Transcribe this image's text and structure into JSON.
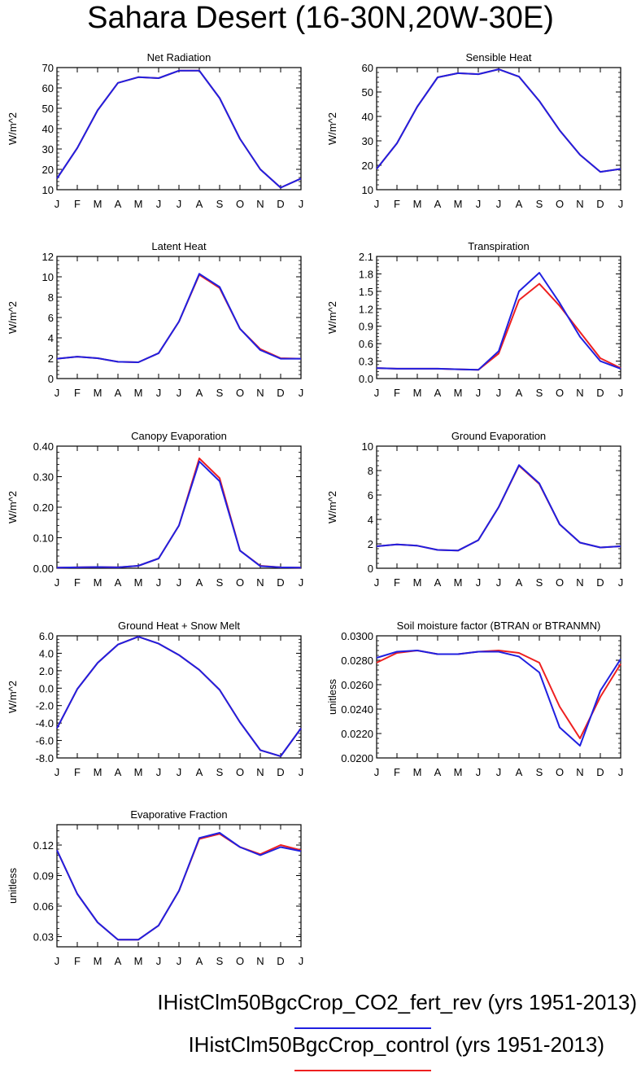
{
  "title": "Sahara Desert (16-30N,20W-30E)",
  "months": [
    "J",
    "F",
    "M",
    "A",
    "M",
    "J",
    "J",
    "A",
    "S",
    "O",
    "N",
    "D",
    "J"
  ],
  "colors": {
    "co2_fert_rev": "#2020e0",
    "control": "#ee2020"
  },
  "legend": [
    {
      "label": "IHistClm50BgcCrop_CO2_fert_rev (yrs 1951-2013)",
      "color": "#2020e0"
    },
    {
      "label": "IHistClm50BgcCrop_control (yrs 1951-2013)",
      "color": "#ee2020"
    }
  ],
  "chart_data": [
    {
      "type": "line",
      "title": "Net Radiation",
      "ylabel": "W/m^2",
      "ylim": [
        10,
        70
      ],
      "yticks": [
        10,
        20,
        30,
        40,
        50,
        60,
        70
      ],
      "ytick_labels": [
        "10",
        "20",
        "30",
        "40",
        "50",
        "60",
        "70"
      ],
      "categories": [
        "J",
        "F",
        "M",
        "A",
        "M",
        "J",
        "J",
        "A",
        "S",
        "O",
        "N",
        "D",
        "J"
      ],
      "series": [
        {
          "key": "control",
          "values": [
            15.5,
            30.5,
            49,
            62.5,
            65.3,
            64.8,
            68.5,
            68.5,
            55,
            35,
            20,
            11,
            15.5
          ]
        },
        {
          "key": "co2_fert_rev",
          "values": [
            15.5,
            30.5,
            49,
            62.5,
            65.3,
            64.8,
            68.5,
            68.5,
            55,
            35,
            20,
            11,
            15.5
          ]
        }
      ]
    },
    {
      "type": "line",
      "title": "Sensible Heat",
      "ylabel": "W/m^2",
      "ylim": [
        10,
        60
      ],
      "yticks": [
        10,
        20,
        30,
        40,
        50,
        60
      ],
      "ytick_labels": [
        "10",
        "20",
        "30",
        "40",
        "50",
        "60"
      ],
      "categories": [
        "J",
        "F",
        "M",
        "A",
        "M",
        "J",
        "J",
        "A",
        "S",
        "O",
        "N",
        "D",
        "J"
      ],
      "series": [
        {
          "key": "control",
          "values": [
            18.5,
            29,
            44,
            56,
            57.7,
            57.3,
            59.3,
            56.3,
            46.3,
            34.3,
            24.3,
            17.3,
            18.5
          ]
        },
        {
          "key": "co2_fert_rev",
          "values": [
            18.5,
            29,
            44,
            56,
            57.7,
            57.3,
            59.3,
            56.3,
            46.3,
            34.3,
            24.3,
            17.3,
            18.5
          ]
        }
      ]
    },
    {
      "type": "line",
      "title": "Latent Heat",
      "ylabel": "W/m^2",
      "ylim": [
        0,
        12
      ],
      "yticks": [
        0,
        2,
        4,
        6,
        8,
        10,
        12
      ],
      "ytick_labels": [
        "0",
        "2",
        "4",
        "6",
        "8",
        "10",
        "12"
      ],
      "categories": [
        "J",
        "F",
        "M",
        "A",
        "M",
        "J",
        "J",
        "A",
        "S",
        "O",
        "N",
        "D",
        "J"
      ],
      "series": [
        {
          "key": "control",
          "values": [
            1.95,
            2.15,
            2.0,
            1.65,
            1.6,
            2.5,
            5.6,
            10.2,
            8.9,
            4.9,
            2.9,
            2.0,
            1.95
          ]
        },
        {
          "key": "co2_fert_rev",
          "values": [
            1.95,
            2.15,
            2.0,
            1.65,
            1.6,
            2.5,
            5.6,
            10.3,
            9.0,
            4.9,
            2.8,
            1.95,
            1.95
          ]
        }
      ]
    },
    {
      "type": "line",
      "title": "Transpiration",
      "ylabel": "W/m^2",
      "ylim": [
        0,
        2.1
      ],
      "yticks": [
        0,
        0.3,
        0.6,
        0.9,
        1.2,
        1.5,
        1.8,
        2.1
      ],
      "ytick_labels": [
        "0.0",
        "0.3",
        "0.6",
        "0.9",
        "1.2",
        "1.5",
        "1.8",
        "2.1"
      ],
      "categories": [
        "J",
        "F",
        "M",
        "A",
        "M",
        "J",
        "J",
        "A",
        "S",
        "O",
        "N",
        "D",
        "J"
      ],
      "series": [
        {
          "key": "control",
          "values": [
            0.18,
            0.17,
            0.17,
            0.17,
            0.16,
            0.15,
            0.43,
            1.35,
            1.63,
            1.25,
            0.8,
            0.35,
            0.18
          ]
        },
        {
          "key": "co2_fert_rev",
          "values": [
            0.18,
            0.17,
            0.17,
            0.17,
            0.16,
            0.15,
            0.47,
            1.5,
            1.82,
            1.3,
            0.72,
            0.3,
            0.17
          ]
        }
      ]
    },
    {
      "type": "line",
      "title": "Canopy Evaporation",
      "ylabel": "W/m^2",
      "ylim": [
        0,
        0.4
      ],
      "yticks": [
        0,
        0.1,
        0.2,
        0.3,
        0.4
      ],
      "ytick_labels": [
        "0.00",
        "0.10",
        "0.20",
        "0.30",
        "0.40"
      ],
      "categories": [
        "J",
        "F",
        "M",
        "A",
        "M",
        "J",
        "J",
        "A",
        "S",
        "O",
        "N",
        "D",
        "J"
      ],
      "series": [
        {
          "key": "control",
          "values": [
            0.002,
            0.003,
            0.004,
            0.003,
            0.008,
            0.032,
            0.14,
            0.36,
            0.295,
            0.058,
            0.008,
            0.003,
            0.002
          ]
        },
        {
          "key": "co2_fert_rev",
          "values": [
            0.002,
            0.003,
            0.004,
            0.003,
            0.008,
            0.032,
            0.14,
            0.35,
            0.285,
            0.058,
            0.007,
            0.003,
            0.002
          ]
        }
      ]
    },
    {
      "type": "line",
      "title": "Ground Evaporation",
      "ylabel": "W/m^2",
      "ylim": [
        0,
        10
      ],
      "yticks": [
        0,
        2,
        4,
        6,
        8,
        10
      ],
      "ytick_labels": [
        "0",
        "2",
        "4",
        "6",
        "8",
        "10"
      ],
      "categories": [
        "J",
        "F",
        "M",
        "A",
        "M",
        "J",
        "J",
        "A",
        "S",
        "O",
        "N",
        "D",
        "J"
      ],
      "series": [
        {
          "key": "control",
          "values": [
            1.8,
            1.95,
            1.85,
            1.5,
            1.45,
            2.3,
            5.0,
            8.4,
            6.9,
            3.6,
            2.1,
            1.7,
            1.8
          ]
        },
        {
          "key": "co2_fert_rev",
          "values": [
            1.8,
            1.95,
            1.85,
            1.5,
            1.45,
            2.3,
            5.0,
            8.45,
            6.95,
            3.6,
            2.1,
            1.7,
            1.8
          ]
        }
      ]
    },
    {
      "type": "line",
      "title": "Ground Heat + Snow Melt",
      "ylabel": "W/m^2",
      "ylim": [
        -8,
        6
      ],
      "yticks": [
        -8,
        -6,
        -4,
        -2,
        0,
        2,
        4,
        6
      ],
      "ytick_labels": [
        "-8.0",
        "-6.0",
        "-4.0",
        "-2.0",
        "0.0",
        "2.0",
        "4.0",
        "6.0"
      ],
      "categories": [
        "J",
        "F",
        "M",
        "A",
        "M",
        "J",
        "J",
        "A",
        "S",
        "O",
        "N",
        "D",
        "J"
      ],
      "series": [
        {
          "key": "control",
          "values": [
            -4.6,
            -0.1,
            2.9,
            5.0,
            5.9,
            5.1,
            3.8,
            2.1,
            -0.2,
            -3.9,
            -7.1,
            -7.8,
            -4.6
          ]
        },
        {
          "key": "co2_fert_rev",
          "values": [
            -4.6,
            -0.1,
            2.9,
            5.0,
            5.9,
            5.1,
            3.8,
            2.1,
            -0.2,
            -3.9,
            -7.1,
            -7.8,
            -4.6
          ]
        }
      ]
    },
    {
      "type": "line",
      "title": "Soil moisture factor (BTRAN or BTRANMN)",
      "ylabel": "unitless",
      "ylim": [
        0.02,
        0.03
      ],
      "yticks": [
        0.02,
        0.022,
        0.024,
        0.026,
        0.028,
        0.03
      ],
      "ytick_labels": [
        "0.0200",
        "0.0220",
        "0.0240",
        "0.0260",
        "0.0280",
        "0.0300"
      ],
      "categories": [
        "J",
        "F",
        "M",
        "A",
        "M",
        "J",
        "J",
        "A",
        "S",
        "O",
        "N",
        "D",
        "J"
      ],
      "series": [
        {
          "key": "control",
          "values": [
            0.0278,
            0.0286,
            0.0288,
            0.0285,
            0.0285,
            0.0287,
            0.0288,
            0.0286,
            0.0278,
            0.0242,
            0.0216,
            0.025,
            0.0277
          ]
        },
        {
          "key": "co2_fert_rev",
          "values": [
            0.0282,
            0.0287,
            0.0288,
            0.0285,
            0.0285,
            0.0287,
            0.0287,
            0.0283,
            0.027,
            0.0225,
            0.021,
            0.0255,
            0.0281
          ]
        }
      ]
    },
    {
      "type": "line",
      "title": "Evaporative Fraction",
      "ylabel": "unitless",
      "ylim": [
        0.02,
        0.14
      ],
      "yticks": [
        0.03,
        0.06,
        0.09,
        0.12
      ],
      "ytick_labels": [
        "0.03",
        "0.06",
        "0.09",
        "0.12"
      ],
      "categories": [
        "J",
        "F",
        "M",
        "A",
        "M",
        "J",
        "J",
        "A",
        "S",
        "O",
        "N",
        "D",
        "J"
      ],
      "series": [
        {
          "key": "control",
          "values": [
            0.115,
            0.072,
            0.044,
            0.027,
            0.027,
            0.041,
            0.075,
            0.126,
            0.131,
            0.118,
            0.111,
            0.12,
            0.115
          ]
        },
        {
          "key": "co2_fert_rev",
          "values": [
            0.115,
            0.072,
            0.044,
            0.027,
            0.027,
            0.041,
            0.075,
            0.127,
            0.132,
            0.118,
            0.11,
            0.118,
            0.114
          ]
        }
      ]
    }
  ]
}
